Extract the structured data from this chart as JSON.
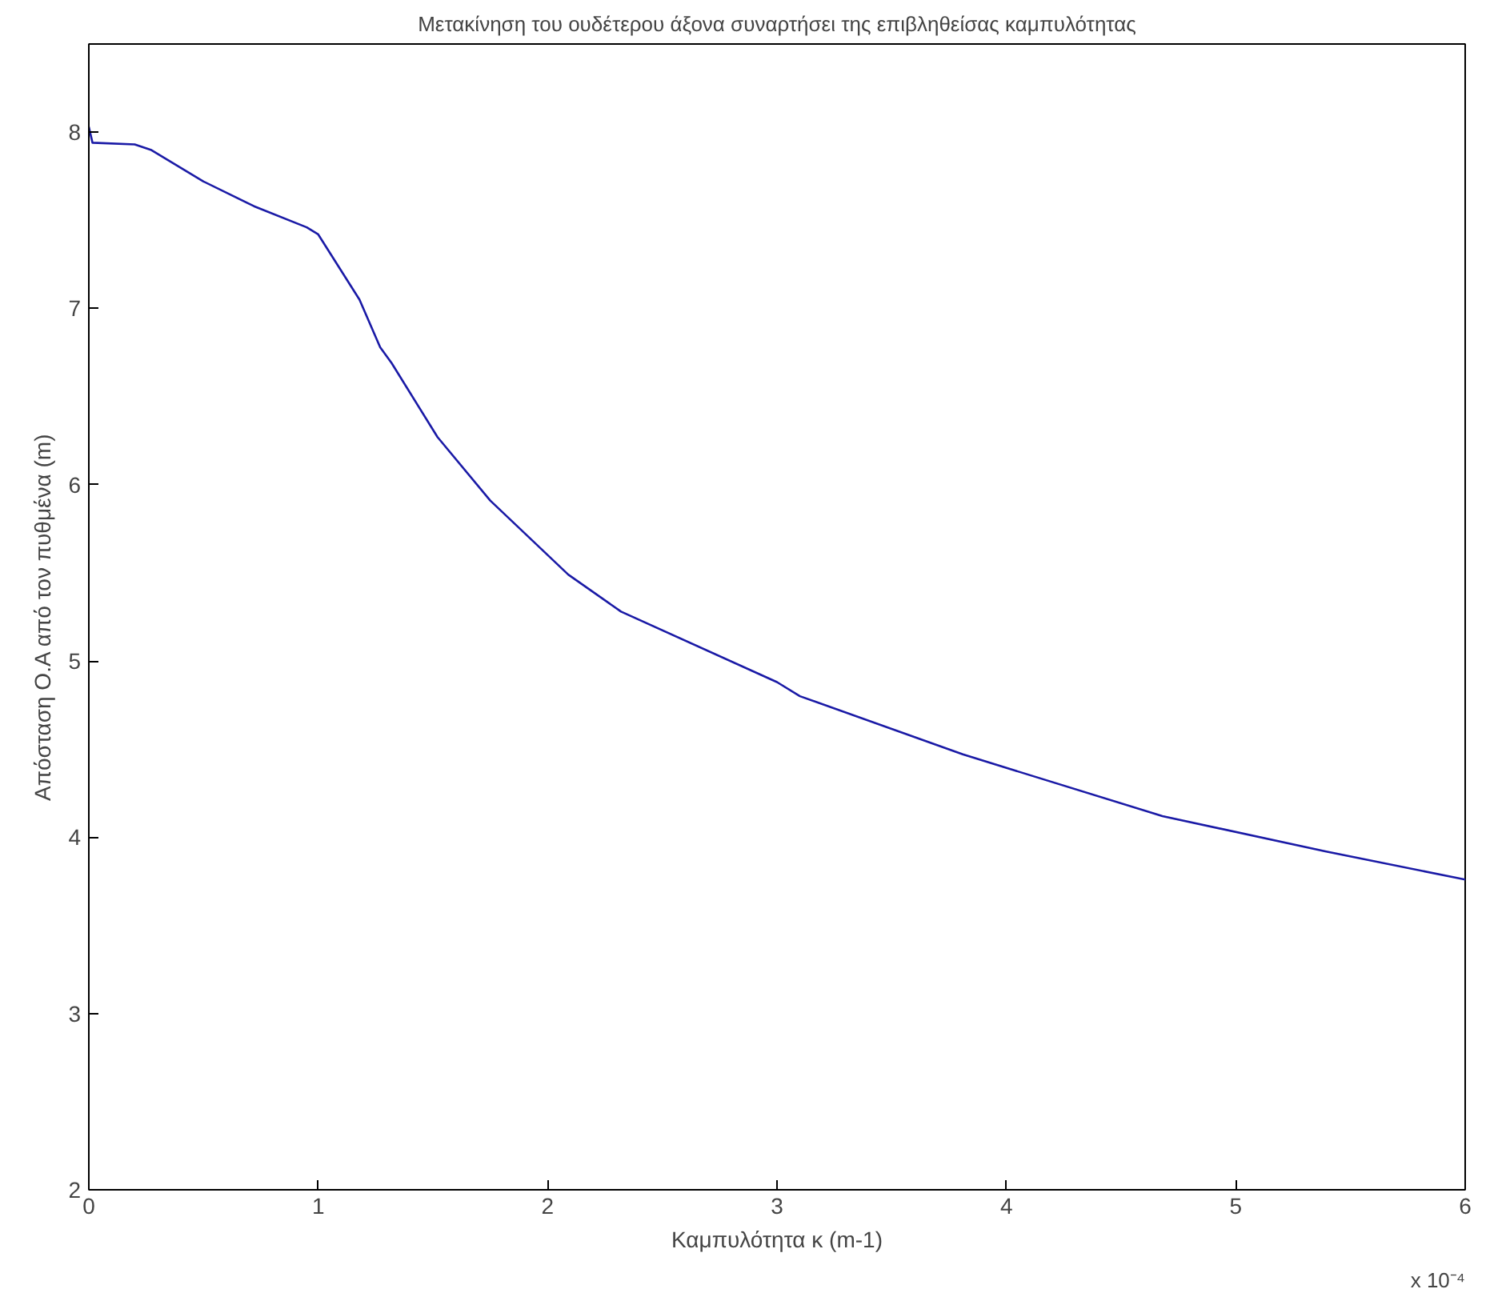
{
  "chart_data": {
    "type": "line",
    "title": "Μετακίνηση του ουδέτερου άξονα συναρτήσει της επιβληθείσας καμπυλότητας",
    "xlabel": "Καμπυλότητα κ (m-1)",
    "ylabel": "Απόσταση Ο.Α από τον πυθμένα (m)",
    "annotations": [
      "x 10⁻⁴"
    ],
    "series": [
      {
        "color": "#1a1aa6",
        "x": [
          0,
          0.016,
          0.2,
          0.27,
          0.5,
          0.72,
          0.95,
          1.0,
          1.18,
          1.27,
          1.32,
          1.52,
          1.75,
          2.09,
          2.32,
          3.0,
          3.1,
          3.81,
          4.68,
          5.39,
          6.0
        ],
        "values": [
          8.03,
          7.94,
          7.93,
          7.9,
          7.72,
          7.58,
          7.46,
          7.42,
          7.05,
          6.78,
          6.69,
          6.27,
          5.91,
          5.49,
          5.28,
          4.88,
          4.8,
          4.47,
          4.12,
          3.92,
          3.76
        ]
      }
    ],
    "xlim": [
      0,
      6
    ],
    "xticks": [
      0,
      1,
      2,
      3,
      4,
      5,
      6
    ],
    "ylim": [
      2,
      8.5
    ],
    "yticks": [
      2,
      3,
      4,
      5,
      6,
      7,
      8
    ],
    "grid": false,
    "marker": "none",
    "line_style": "solid"
  }
}
